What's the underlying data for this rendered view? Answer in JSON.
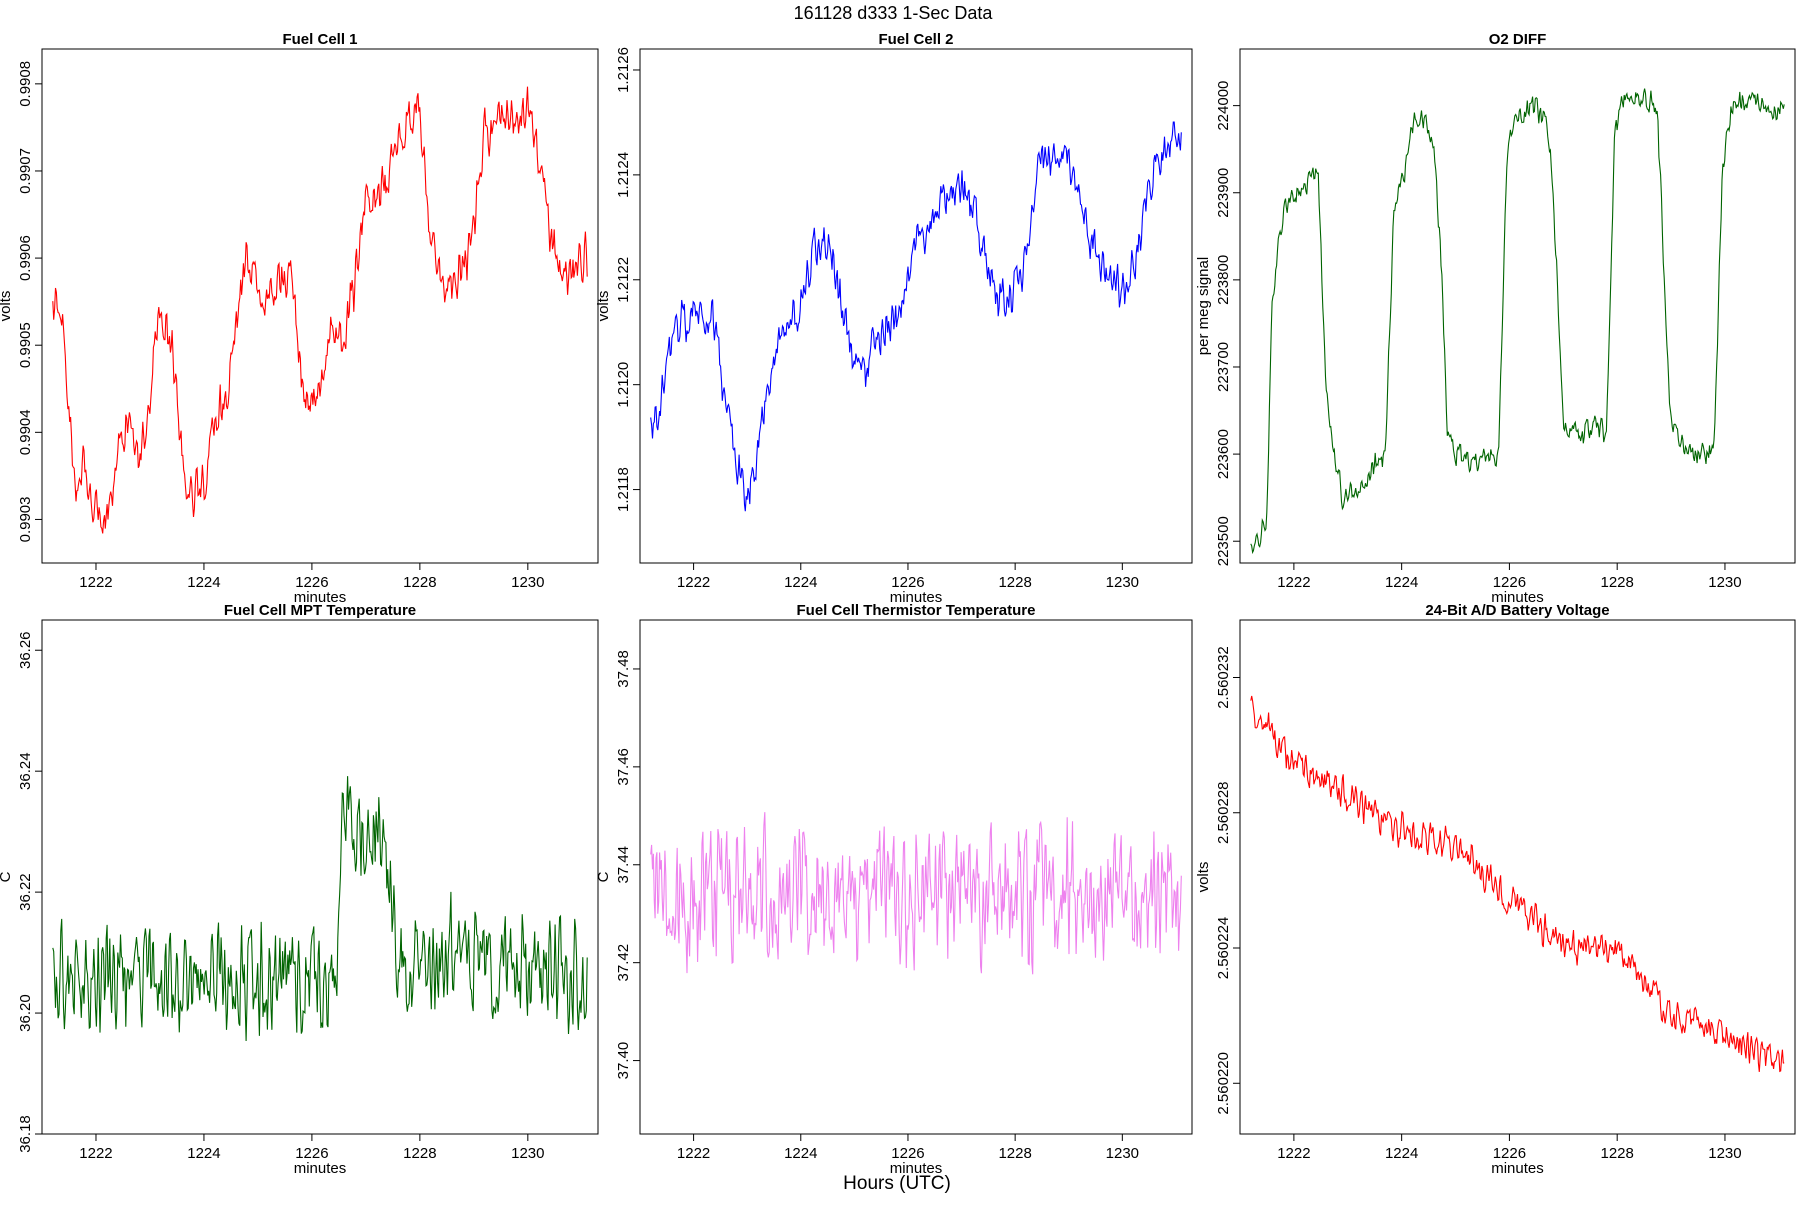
{
  "figure": {
    "title": "161128   d333   1-Sec Data",
    "xlabel": "Hours (UTC)"
  },
  "chart_data": [
    {
      "type": "line",
      "title": "Fuel Cell 1",
      "xlabel": "minutes",
      "ylabel": "volts",
      "color": "#ff0000",
      "xlim": [
        1221.0,
        1231.3
      ],
      "ylim": [
        0.99025,
        0.99084
      ],
      "xticks": [
        1222,
        1224,
        1226,
        1228,
        1230
      ],
      "yticks": [
        0.9903,
        0.9904,
        0.9905,
        0.9906,
        0.9907,
        0.9908
      ],
      "ytick_labels": [
        "0.9903",
        "0.9904",
        "0.9905",
        "0.9906",
        "0.9907",
        "0.9908"
      ],
      "noise": 3.5e-05,
      "series": [
        {
          "x": [
            1221.2,
            1221.4,
            1221.6,
            1221.8,
            1222.0,
            1222.2,
            1222.4,
            1222.6,
            1222.8,
            1223.0,
            1223.2,
            1223.4,
            1223.6,
            1223.8,
            1224.0,
            1224.2,
            1224.4,
            1224.6,
            1224.8,
            1225.0,
            1225.2,
            1225.4,
            1225.6,
            1225.8,
            1226.0,
            1226.2,
            1226.4,
            1226.6,
            1226.8,
            1227.0,
            1227.2,
            1227.4,
            1227.6,
            1227.8,
            1228.0,
            1228.2,
            1228.4,
            1228.6,
            1228.8,
            1229.0,
            1229.2,
            1229.4,
            1229.6,
            1229.8,
            1230.0,
            1230.2,
            1230.4,
            1230.6,
            1230.8,
            1231.0,
            1231.1
          ],
          "y": [
            0.99054,
            0.99052,
            0.99035,
            0.99036,
            0.99031,
            0.9903,
            0.99038,
            0.99042,
            0.99035,
            0.99045,
            0.99055,
            0.9905,
            0.99036,
            0.99032,
            0.99034,
            0.99042,
            0.99043,
            0.99052,
            0.9906,
            0.99055,
            0.99057,
            0.99057,
            0.99059,
            0.99046,
            0.99043,
            0.99048,
            0.99051,
            0.99052,
            0.99058,
            0.99066,
            0.99068,
            0.99068,
            0.99074,
            0.99077,
            0.99078,
            0.99062,
            0.99058,
            0.99057,
            0.99058,
            0.99064,
            0.99074,
            0.99075,
            0.99077,
            0.99076,
            0.99078,
            0.99071,
            0.99063,
            0.99058,
            0.99059,
            0.9906,
            0.9906
          ]
        }
      ]
    },
    {
      "type": "line",
      "title": "Fuel Cell 2",
      "xlabel": "minutes",
      "ylabel": "volts",
      "color": "#0000ff",
      "xlim": [
        1221.0,
        1231.3
      ],
      "ylim": [
        1.21166,
        1.21264
      ],
      "xticks": [
        1222,
        1224,
        1226,
        1228,
        1230
      ],
      "yticks": [
        1.2118,
        1.212,
        1.2122,
        1.2124,
        1.2126
      ],
      "ytick_labels": [
        "1.2118",
        "1.2120",
        "1.2122",
        "1.2124",
        "1.2126"
      ],
      "noise": 5e-05,
      "series": [
        {
          "x": [
            1221.2,
            1221.4,
            1221.6,
            1221.8,
            1222.0,
            1222.2,
            1222.4,
            1222.6,
            1222.8,
            1223.0,
            1223.2,
            1223.4,
            1223.6,
            1223.8,
            1224.0,
            1224.2,
            1224.4,
            1224.6,
            1224.8,
            1225.0,
            1225.2,
            1225.4,
            1225.6,
            1225.8,
            1226.0,
            1226.2,
            1226.4,
            1226.6,
            1226.8,
            1227.0,
            1227.2,
            1227.4,
            1227.6,
            1227.8,
            1228.0,
            1228.2,
            1228.4,
            1228.6,
            1228.8,
            1229.0,
            1229.2,
            1229.4,
            1229.6,
            1229.8,
            1230.0,
            1230.2,
            1230.4,
            1230.6,
            1230.8,
            1231.0,
            1231.1
          ],
          "y": [
            1.21192,
            1.21198,
            1.21208,
            1.21212,
            1.21213,
            1.21214,
            1.21212,
            1.21195,
            1.21185,
            1.21178,
            1.21188,
            1.212,
            1.21208,
            1.21212,
            1.21215,
            1.21225,
            1.21228,
            1.21225,
            1.21212,
            1.21205,
            1.21202,
            1.21208,
            1.21212,
            1.21212,
            1.2122,
            1.21228,
            1.2123,
            1.21235,
            1.21238,
            1.21238,
            1.21234,
            1.21226,
            1.21218,
            1.21216,
            1.21218,
            1.21222,
            1.2124,
            1.21245,
            1.21244,
            1.21243,
            1.21236,
            1.21228,
            1.21224,
            1.2122,
            1.21218,
            1.21222,
            1.21232,
            1.21242,
            1.21245,
            1.21246,
            1.21246
          ]
        }
      ]
    },
    {
      "type": "line",
      "title": "O2 DIFF",
      "xlabel": "minutes",
      "ylabel": "per meg signal",
      "color": "#006400",
      "xlim": [
        1221.0,
        1231.3
      ],
      "ylim": [
        223475,
        224065
      ],
      "xticks": [
        1222,
        1224,
        1226,
        1228,
        1230
      ],
      "yticks": [
        223500,
        223600,
        223700,
        223800,
        223900,
        224000
      ],
      "ytick_labels": [
        "223500",
        "223600",
        "223700",
        "223800",
        "223900",
        "224000"
      ],
      "noise": 18,
      "series": [
        {
          "x": [
            1221.2,
            1221.35,
            1221.5,
            1221.6,
            1221.8,
            1222.0,
            1222.2,
            1222.45,
            1222.6,
            1222.75,
            1222.9,
            1223.2,
            1223.5,
            1223.7,
            1223.85,
            1224.0,
            1224.2,
            1224.4,
            1224.6,
            1224.75,
            1224.85,
            1225.0,
            1225.3,
            1225.6,
            1225.8,
            1225.95,
            1226.1,
            1226.4,
            1226.6,
            1226.75,
            1226.9,
            1227.0,
            1227.3,
            1227.6,
            1227.8,
            1227.95,
            1228.1,
            1228.4,
            1228.6,
            1228.75,
            1228.9,
            1229.0,
            1229.3,
            1229.6,
            1229.8,
            1229.95,
            1230.1,
            1230.3,
            1230.5,
            1230.7,
            1230.9,
            1231.1
          ],
          "y": [
            223490,
            223505,
            223530,
            223780,
            223880,
            223900,
            223910,
            223920,
            223680,
            223600,
            223545,
            223555,
            223590,
            223600,
            223870,
            223910,
            223980,
            223985,
            223960,
            223800,
            223620,
            223600,
            223590,
            223595,
            223600,
            223940,
            223980,
            223995,
            223990,
            223960,
            223780,
            223640,
            223620,
            223630,
            223625,
            223960,
            224010,
            224015,
            224005,
            223990,
            223760,
            223630,
            223605,
            223600,
            223605,
            223920,
            223990,
            224000,
            224005,
            224000,
            224000,
            223995
          ]
        }
      ]
    },
    {
      "type": "line",
      "title": "Fuel Cell MPT Temperature",
      "xlabel": "minutes",
      "ylabel": "C",
      "color": "#006400",
      "xlim": [
        1221.0,
        1231.3
      ],
      "ylim": [
        36.18,
        36.265
      ],
      "xticks": [
        1222,
        1224,
        1226,
        1228,
        1230
      ],
      "yticks": [
        36.18,
        36.2,
        36.22,
        36.24,
        36.26
      ],
      "ytick_labels": [
        "36.18",
        "36.20",
        "36.22",
        "36.24",
        "36.26"
      ],
      "noise": 0.011,
      "series": [
        {
          "x": [
            1221.2,
            1222.0,
            1223.0,
            1224.0,
            1225.0,
            1226.0,
            1226.45,
            1226.55,
            1227.0,
            1227.4,
            1227.6,
            1228.0,
            1229.0,
            1230.0,
            1231.1
          ],
          "y": [
            36.206,
            36.206,
            36.206,
            36.206,
            36.206,
            36.206,
            36.206,
            36.232,
            36.232,
            36.225,
            36.208,
            36.208,
            36.21,
            36.206,
            36.206
          ]
        }
      ]
    },
    {
      "type": "line",
      "title": "Fuel Cell Thermistor Temperature",
      "xlabel": "minutes",
      "ylabel": "C",
      "color": "#ee82ee",
      "xlim": [
        1221.0,
        1231.3
      ],
      "ylim": [
        37.385,
        37.49
      ],
      "xticks": [
        1222,
        1224,
        1226,
        1228,
        1230
      ],
      "yticks": [
        37.4,
        37.42,
        37.44,
        37.46,
        37.48
      ],
      "ytick_labels": [
        "37.40",
        "37.42",
        "37.44",
        "37.46",
        "37.48"
      ],
      "noise": 0.017,
      "series": [
        {
          "x": [
            1221.2,
            1223.0,
            1225.0,
            1227.0,
            1229.0,
            1231.1
          ],
          "y": [
            37.434,
            37.434,
            37.434,
            37.434,
            37.434,
            37.434
          ]
        }
      ]
    },
    {
      "type": "line",
      "title": "24-Bit A/D Battery Voltage",
      "xlabel": "minutes",
      "ylabel": "volts",
      "color": "#ff0000",
      "xlim": [
        1221.0,
        1231.3
      ],
      "ylim": [
        2.5602185,
        2.5602337
      ],
      "xticks": [
        1222,
        1224,
        1226,
        1228,
        1230
      ],
      "yticks": [
        2.56022,
        2.560224,
        2.560228,
        2.560232
      ],
      "ytick_labels": [
        "2.560220",
        "2.560224",
        "2.560228",
        "2.560232"
      ],
      "noise": 6e-07,
      "series": [
        {
          "x": [
            1221.2,
            1222.0,
            1223.0,
            1224.0,
            1225.0,
            1226.0,
            1227.0,
            1228.0,
            1229.0,
            1230.0,
            1231.1
          ],
          "y": [
            2.560231,
            2.5602295,
            2.5602285,
            2.5602275,
            2.560227,
            2.5602255,
            2.560224,
            2.560224,
            2.560222,
            2.5602215,
            2.5602205
          ]
        }
      ]
    }
  ]
}
